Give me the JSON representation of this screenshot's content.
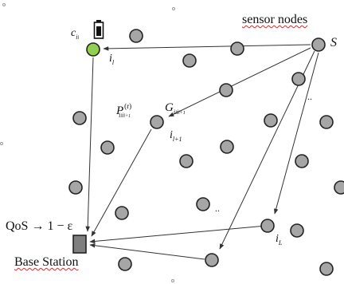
{
  "labels": {
    "sensor_nodes": "sensor nodes",
    "source": "S",
    "battery_node": {
      "main": "c",
      "sub": "i",
      "subsub": "l"
    },
    "node_il": {
      "main": "i",
      "sub": "l"
    },
    "prob": {
      "main": "P",
      "sup": "(r)",
      "sub": "i",
      "subsub": "l",
      "subtail": "i",
      "subtail_sub": "l+1"
    },
    "gain": {
      "main": "G",
      "sub": "i",
      "subsub": "l",
      "subtail": "i",
      "subtail_sub": "l+1"
    },
    "node_il1": {
      "main": "i",
      "sub": "l+1"
    },
    "node_iL": {
      "main": "i",
      "sub": "L"
    },
    "qos": "QoS → 1 − ε",
    "base_station": "Base Station",
    "dots": ".."
  },
  "colors": {
    "node_fill": "#a6a6a6",
    "node_stroke": "#222222",
    "battery_node_fill": "#92d050",
    "base_station_fill": "#7f7f7f",
    "edge": "#333333"
  },
  "icons": [
    "battery-icon",
    "base-station-icon"
  ]
}
